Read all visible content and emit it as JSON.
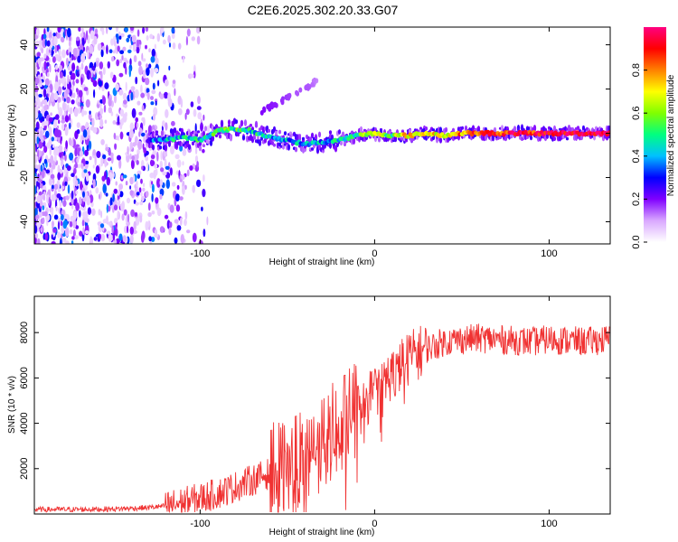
{
  "title": "C2E6.2025.302.20.33.G07",
  "chart_data": [
    {
      "type": "heatmap",
      "name": "spectrogram",
      "xlabel": "Height of straight line (km)",
      "ylabel": "Frequency (Hz)",
      "xlim": [
        -195,
        135
      ],
      "ylim": [
        -50,
        48
      ],
      "xticks": [
        -100,
        0,
        100
      ],
      "xtick_labels": [
        "-100",
        "0",
        "100"
      ],
      "yticks": [
        -40,
        -20,
        0,
        20,
        40
      ],
      "ytick_labels": [
        "-40",
        "-20",
        "0",
        "20",
        "40"
      ],
      "colorbar": {
        "label": "Normalized spectral amplitude",
        "range": [
          0,
          1
        ],
        "ticks": [
          0.0,
          0.2,
          0.4,
          0.6,
          0.8
        ],
        "tick_labels": [
          "0.0",
          "0.2",
          "0.4",
          "0.6",
          "0.8"
        ],
        "colors": [
          "#ffffff",
          "#d9a8ff",
          "#8000ff",
          "#0000ff",
          "#00c0ff",
          "#00ff80",
          "#80ff00",
          "#ffff00",
          "#ff8000",
          "#ff0000",
          "#ff0080"
        ]
      },
      "noise_region_x": [
        -195,
        -115
      ],
      "signal_track": {
        "x": [
          -130,
          -120,
          -110,
          -100,
          -90,
          -80,
          -70,
          -60,
          -50,
          -40,
          -30,
          -20,
          -10,
          0,
          10,
          20,
          30,
          40,
          50,
          60,
          70,
          80,
          90,
          100,
          110,
          120,
          135
        ],
        "y": [
          -3,
          -3,
          -2,
          -3,
          1,
          2,
          1,
          -2,
          -3,
          -5,
          -4,
          -3,
          -1,
          0,
          -1,
          -1,
          0,
          -1,
          0,
          0,
          0,
          0,
          0,
          0,
          0,
          0,
          0
        ],
        "amplitude": [
          0.35,
          0.4,
          0.45,
          0.45,
          0.55,
          0.5,
          0.45,
          0.45,
          0.4,
          0.4,
          0.4,
          0.45,
          0.5,
          0.7,
          0.55,
          0.75,
          0.7,
          0.7,
          0.8,
          0.85,
          0.85,
          0.9,
          0.9,
          0.95,
          0.95,
          0.95,
          0.95
        ]
      },
      "secondary_track": {
        "x": [
          -65,
          -55,
          -45,
          -38,
          -33
        ],
        "y": [
          10,
          14,
          18,
          21,
          24
        ],
        "amplitude": [
          0.2,
          0.18,
          0.15,
          0.15,
          0.12
        ]
      }
    },
    {
      "type": "line",
      "name": "snr",
      "xlabel": "Height of straight line (km)",
      "ylabel": "SNR (10 * v/v)",
      "xlim": [
        -195,
        135
      ],
      "ylim": [
        0,
        9600
      ],
      "xticks": [
        -100,
        0,
        100
      ],
      "xtick_labels": [
        "-100",
        "0",
        "100"
      ],
      "yticks": [
        2000,
        4000,
        6000,
        8000
      ],
      "ytick_labels": [
        "2000",
        "4000",
        "6000",
        "8000"
      ],
      "color": "#f03232",
      "series": [
        {
          "name": "SNR",
          "x": [
            -195,
            -170,
            -150,
            -130,
            -120,
            -110,
            -100,
            -90,
            -80,
            -70,
            -60,
            -50,
            -40,
            -30,
            -20,
            -10,
            -5,
            0,
            5,
            10,
            15,
            20,
            30,
            40,
            50,
            60,
            70,
            80,
            90,
            100,
            110,
            120,
            135
          ],
          "values": [
            200,
            200,
            220,
            280,
            350,
            500,
            700,
            900,
            1200,
            1500,
            1800,
            2100,
            2600,
            3200,
            3900,
            4600,
            5000,
            5400,
            5800,
            6200,
            6550,
            6900,
            7300,
            7600,
            7700,
            7750,
            7700,
            7650,
            7600,
            7700,
            7650,
            7600,
            7700
          ]
        }
      ],
      "noise_amplitude": [
        {
          "x": [
            -195,
            -120
          ],
          "amp": 120
        },
        {
          "x": [
            -120,
            -60
          ],
          "amp": 700
        },
        {
          "x": [
            -60,
            -10
          ],
          "amp": 2200
        },
        {
          "x": [
            -10,
            30
          ],
          "amp": 1200
        },
        {
          "x": [
            30,
            135
          ],
          "amp": 650
        }
      ]
    }
  ]
}
